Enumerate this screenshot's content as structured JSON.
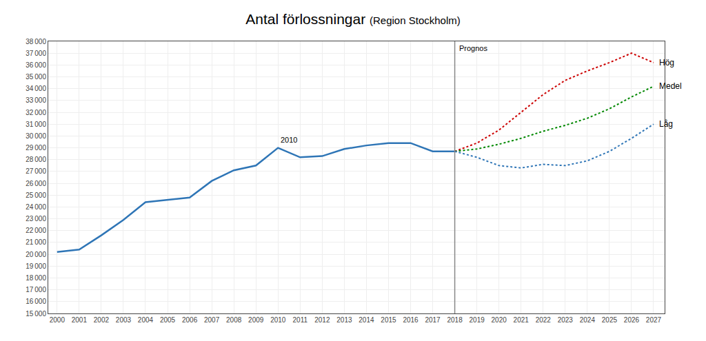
{
  "chart_data": {
    "type": "line",
    "title": "Antal förlossningar",
    "subtitle": "(Region Stockholm)",
    "x": [
      2000,
      2001,
      2002,
      2003,
      2004,
      2005,
      2006,
      2007,
      2008,
      2009,
      2010,
      2011,
      2012,
      2013,
      2014,
      2015,
      2016,
      2017,
      2018,
      2019,
      2020,
      2021,
      2022,
      2023,
      2024,
      2025,
      2026,
      2027
    ],
    "series": [
      {
        "color": "#2e75b6",
        "line_style": "solid",
        "values": [
          20200,
          20400,
          21600,
          22900,
          24400,
          24600,
          24800,
          26200,
          27100,
          27500,
          29000,
          28200,
          28300,
          28900,
          29200,
          29400,
          29400,
          28700,
          28700,
          null,
          null,
          null,
          null,
          null,
          null,
          null,
          null,
          null
        ]
      },
      {
        "name": "Hög",
        "color": "#cc0000",
        "line_style": "dotted",
        "values": [
          null,
          null,
          null,
          null,
          null,
          null,
          null,
          null,
          null,
          null,
          null,
          null,
          null,
          null,
          null,
          null,
          null,
          null,
          28700,
          29400,
          30500,
          32000,
          33500,
          34700,
          35500,
          36200,
          37000,
          36200
        ]
      },
      {
        "name": "Medel",
        "color": "#008800",
        "line_style": "dotted",
        "values": [
          null,
          null,
          null,
          null,
          null,
          null,
          null,
          null,
          null,
          null,
          null,
          null,
          null,
          null,
          null,
          null,
          null,
          null,
          28700,
          28900,
          29300,
          29800,
          30400,
          30900,
          31500,
          32300,
          33300,
          34200
        ]
      },
      {
        "name": "Låg",
        "color": "#2e75b6",
        "line_style": "dotted",
        "values": [
          null,
          null,
          null,
          null,
          null,
          null,
          null,
          null,
          null,
          null,
          null,
          null,
          null,
          null,
          null,
          null,
          null,
          null,
          28700,
          28200,
          27500,
          27300,
          27600,
          27500,
          27900,
          28700,
          29800,
          31000
        ]
      }
    ],
    "vlines": [
      {
        "x": 2018,
        "label": "Prognos",
        "color": "#888888"
      }
    ],
    "annotations": [
      {
        "text": "2010",
        "x": 2010
      }
    ],
    "xlim": [
      1999.6,
      2027.5
    ],
    "xticks": [
      2000,
      2001,
      2002,
      2003,
      2004,
      2005,
      2006,
      2007,
      2008,
      2009,
      2010,
      2011,
      2012,
      2013,
      2014,
      2015,
      2016,
      2017,
      2018,
      2019,
      2020,
      2021,
      2022,
      2023,
      2024,
      2025,
      2026,
      2027
    ],
    "ylim": [
      15000,
      38000
    ],
    "yticks": [
      {
        "value": 15000,
        "label": "15 000"
      },
      {
        "value": 16000,
        "label": "16 000"
      },
      {
        "value": 17000,
        "label": "17 000"
      },
      {
        "value": 18000,
        "label": "18 000"
      },
      {
        "value": 19000,
        "label": "19 000"
      },
      {
        "value": 20000,
        "label": "20 000"
      },
      {
        "value": 21000,
        "label": "21 000"
      },
      {
        "value": 22000,
        "label": "22 000"
      },
      {
        "value": 23000,
        "label": "23 000"
      },
      {
        "value": 24000,
        "label": "24 000"
      },
      {
        "value": 25000,
        "label": "25 000"
      },
      {
        "value": 26000,
        "label": "26 000"
      },
      {
        "value": 27000,
        "label": "27 000"
      },
      {
        "value": 28000,
        "label": "28 000"
      },
      {
        "value": 29000,
        "label": "29 000"
      },
      {
        "value": 30000,
        "label": "30 000"
      },
      {
        "value": 31000,
        "label": "31 000"
      },
      {
        "value": 32000,
        "label": "32 000"
      },
      {
        "value": 33000,
        "label": "33 000"
      },
      {
        "value": 34000,
        "label": "34 000"
      },
      {
        "value": 35000,
        "label": "35 000"
      },
      {
        "value": 36000,
        "label": "36 000"
      },
      {
        "value": 37000,
        "label": "37 000"
      },
      {
        "value": 38000,
        "label": "38 000"
      }
    ],
    "grid": true
  }
}
